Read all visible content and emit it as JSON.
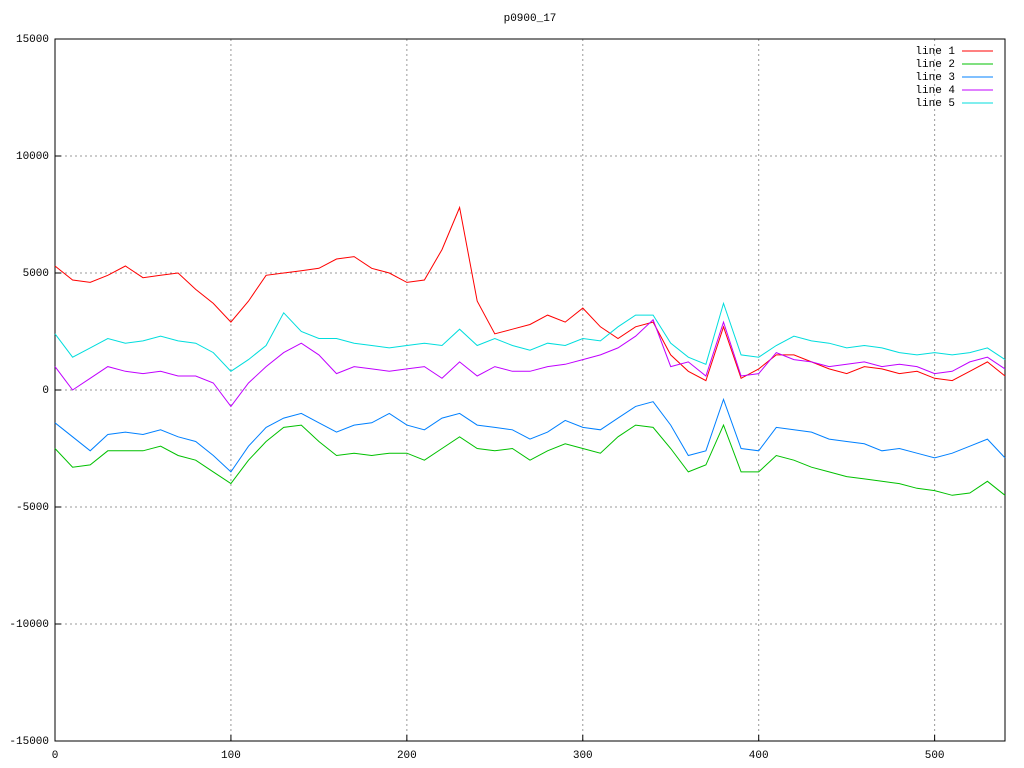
{
  "chart_data": {
    "type": "line",
    "title": "p0900_17",
    "x": [
      0,
      10,
      20,
      30,
      40,
      50,
      60,
      70,
      80,
      90,
      100,
      110,
      120,
      130,
      140,
      150,
      160,
      170,
      180,
      190,
      200,
      210,
      220,
      230,
      240,
      250,
      260,
      270,
      280,
      290,
      300,
      310,
      320,
      330,
      340,
      350,
      360,
      370,
      380,
      390,
      400,
      410,
      420,
      430,
      440,
      450,
      460,
      470,
      480,
      490,
      500,
      510,
      520,
      530,
      540
    ],
    "series": [
      {
        "name": "line 1",
        "color": "#ff0000",
        "values": [
          5300,
          4700,
          4600,
          4900,
          5300,
          4800,
          4900,
          5000,
          4300,
          3700,
          2900,
          3800,
          4900,
          5000,
          5100,
          5200,
          5600,
          5700,
          5200,
          5000,
          4600,
          4700,
          6000,
          7800,
          3800,
          2400,
          2600,
          2800,
          3200,
          2900,
          3500,
          2700,
          2200,
          2700,
          2900,
          1500,
          800,
          400,
          2700,
          500,
          900,
          1500,
          1500,
          1200,
          900,
          700,
          1000,
          900,
          700,
          800,
          500,
          400,
          800,
          1200,
          600
        ]
      },
      {
        "name": "line 2",
        "color": "#00c000",
        "values": [
          -2500,
          -3300,
          -3200,
          -2600,
          -2600,
          -2600,
          -2400,
          -2800,
          -3000,
          -3500,
          -4000,
          -3000,
          -2200,
          -1600,
          -1500,
          -2200,
          -2800,
          -2700,
          -2800,
          -2700,
          -2700,
          -3000,
          -2500,
          -2000,
          -2500,
          -2600,
          -2500,
          -3000,
          -2600,
          -2300,
          -2500,
          -2700,
          -2000,
          -1500,
          -1600,
          -2500,
          -3500,
          -3200,
          -1500,
          -3500,
          -3500,
          -2800,
          -3000,
          -3300,
          -3500,
          -3700,
          -3800,
          -3900,
          -4000,
          -4200,
          -4300,
          -4500,
          -4400,
          -3900,
          -4500
        ]
      },
      {
        "name": "line 3",
        "color": "#0080ff",
        "values": [
          -1400,
          -2000,
          -2600,
          -1900,
          -1800,
          -1900,
          -1700,
          -2000,
          -2200,
          -2800,
          -3500,
          -2400,
          -1600,
          -1200,
          -1000,
          -1400,
          -1800,
          -1500,
          -1400,
          -1000,
          -1500,
          -1700,
          -1200,
          -1000,
          -1500,
          -1600,
          -1700,
          -2100,
          -1800,
          -1300,
          -1600,
          -1700,
          -1200,
          -700,
          -500,
          -1500,
          -2800,
          -2600,
          -400,
          -2500,
          -2600,
          -1600,
          -1700,
          -1800,
          -2100,
          -2200,
          -2300,
          -2600,
          -2500,
          -2700,
          -2900,
          -2700,
          -2400,
          -2100,
          -2900
        ]
      },
      {
        "name": "line 4",
        "color": "#c000ff",
        "values": [
          1000,
          0,
          500,
          1000,
          800,
          700,
          800,
          600,
          600,
          300,
          -700,
          300,
          1000,
          1600,
          2000,
          1500,
          700,
          1000,
          900,
          800,
          900,
          1000,
          500,
          1200,
          600,
          1000,
          800,
          800,
          1000,
          1100,
          1300,
          1500,
          1800,
          2300,
          3000,
          1000,
          1200,
          600,
          2900,
          600,
          700,
          1600,
          1300,
          1200,
          1000,
          1100,
          1200,
          1000,
          1100,
          1000,
          700,
          800,
          1200,
          1400,
          900
        ]
      },
      {
        "name": "line 5",
        "color": "#00dddd",
        "values": [
          2400,
          1400,
          1800,
          2200,
          2000,
          2100,
          2300,
          2100,
          2000,
          1600,
          800,
          1300,
          1900,
          3300,
          2500,
          2200,
          2200,
          2000,
          1900,
          1800,
          1900,
          2000,
          1900,
          2600,
          1900,
          2200,
          1900,
          1700,
          2000,
          1900,
          2200,
          2100,
          2700,
          3200,
          3200,
          2000,
          1400,
          1100,
          3700,
          1500,
          1400,
          1900,
          2300,
          2100,
          2000,
          1800,
          1900,
          1800,
          1600,
          1500,
          1600,
          1500,
          1600,
          1800,
          1300
        ]
      }
    ],
    "xlim": [
      0,
      540
    ],
    "xticks": [
      0,
      100,
      200,
      300,
      400,
      500
    ],
    "ylim": [
      -15000,
      15000
    ],
    "yticks": [
      -15000,
      -10000,
      -5000,
      0,
      5000,
      10000,
      15000
    ],
    "grid": true,
    "legend": "top-right"
  }
}
